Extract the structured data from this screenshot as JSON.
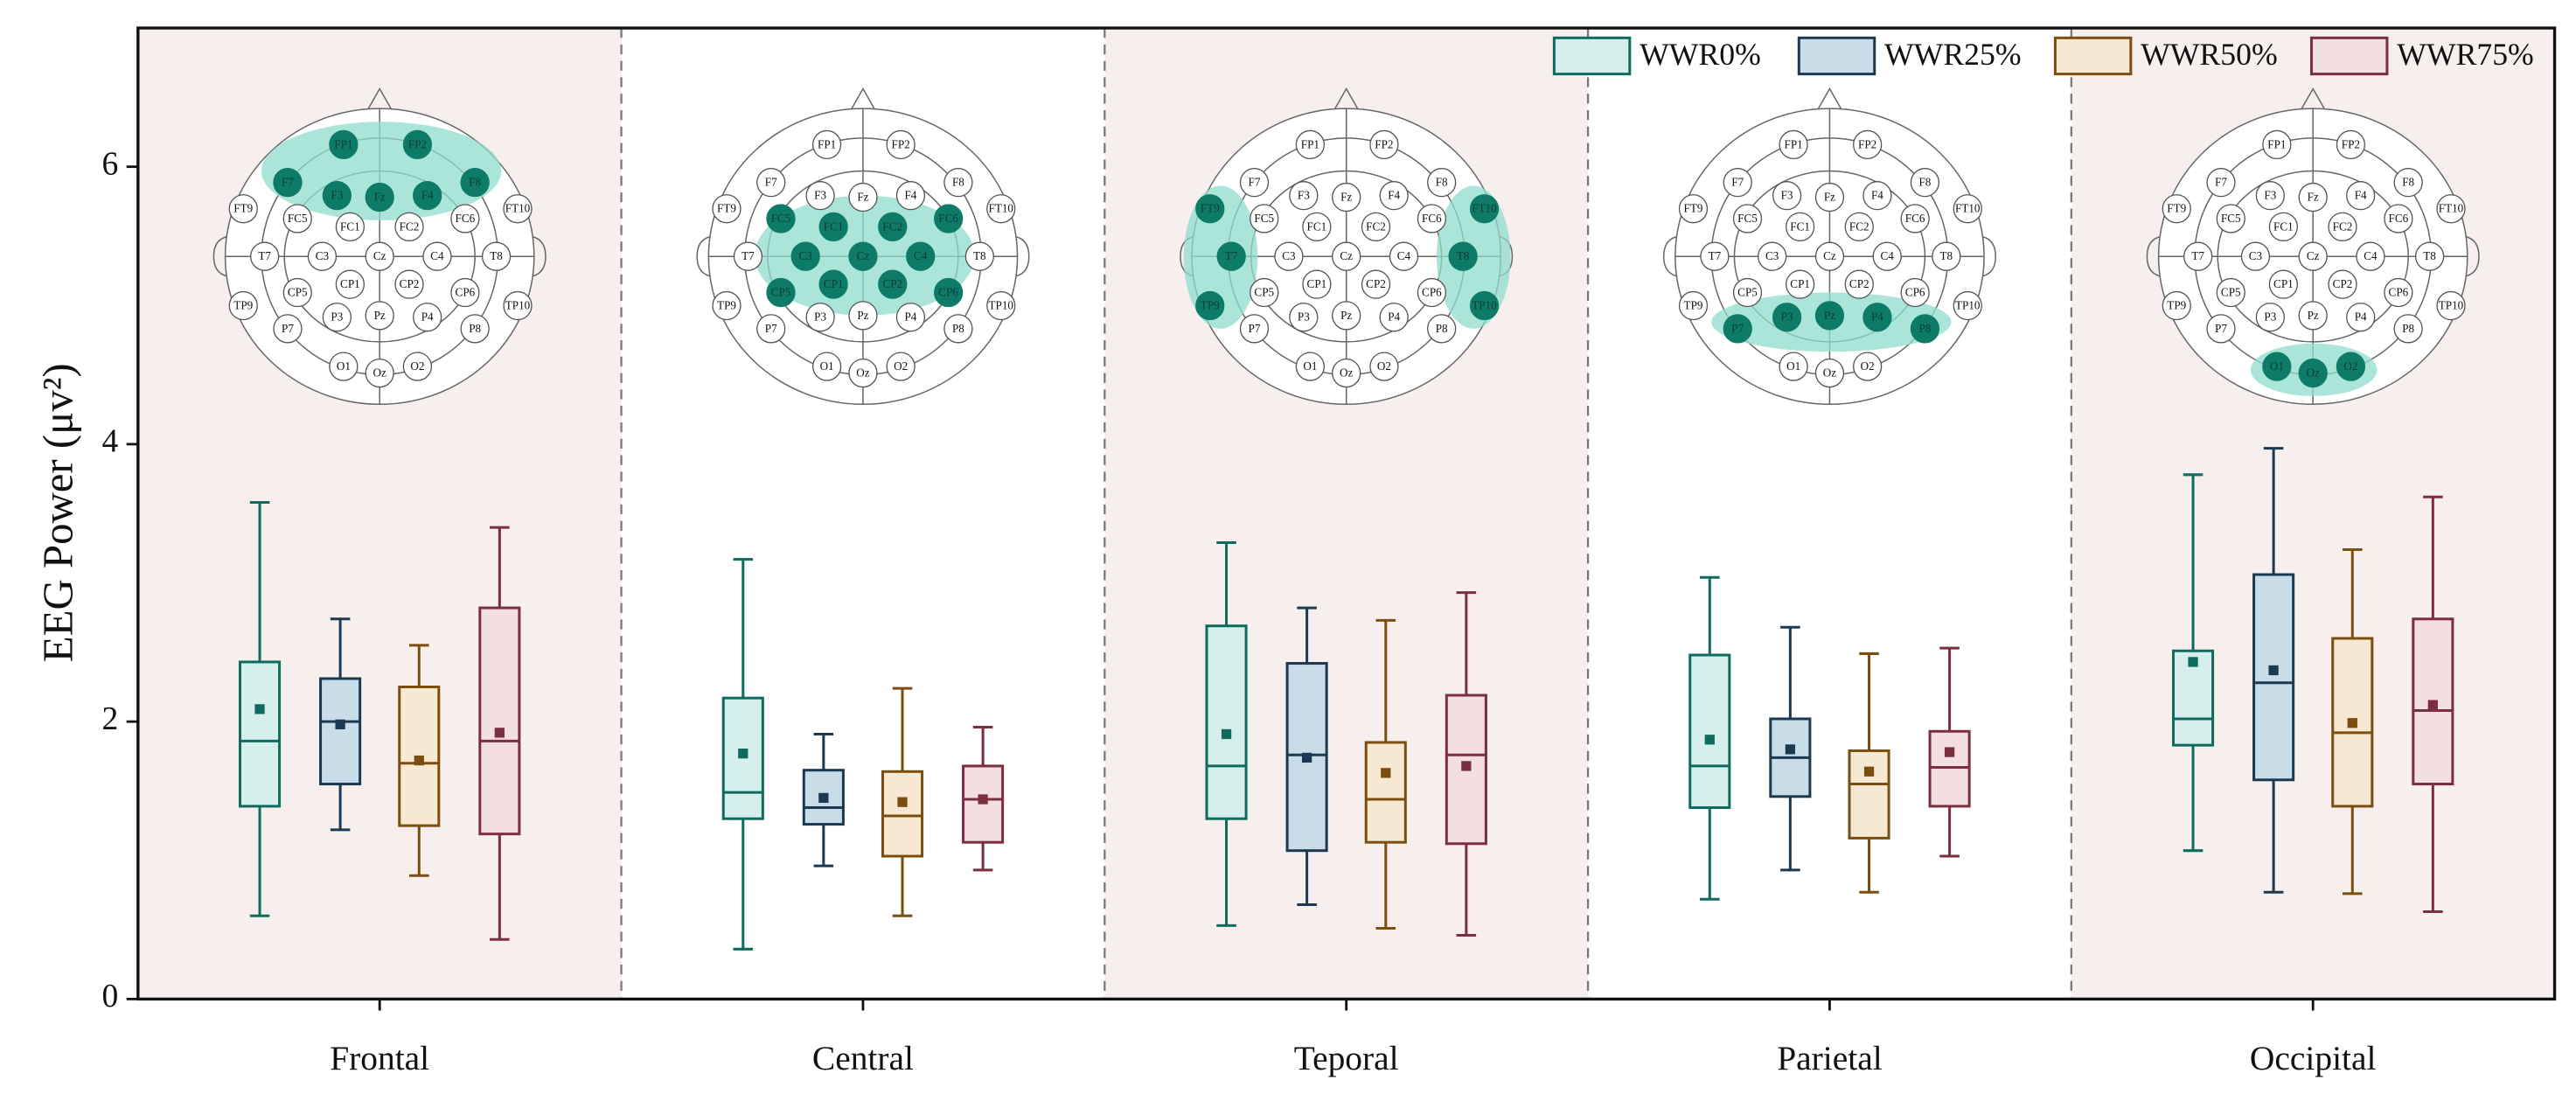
{
  "chart_data": {
    "type": "box",
    "y_label": "EEG Power (μv²)",
    "categories": [
      "Frontal",
      "Central",
      "Teporal",
      "Parietal",
      "Occipital"
    ],
    "ylim": [
      0,
      7
    ],
    "yticks": [
      0,
      2,
      4,
      6
    ],
    "shaded_background": "#f7efed",
    "series": [
      {
        "name": "WWR0%",
        "color": "#0e6b5e",
        "fill": "#d6efec",
        "low": [
          0.6,
          0.36,
          0.53,
          0.72,
          1.07
        ],
        "q1": [
          1.39,
          1.3,
          1.3,
          1.38,
          1.83
        ],
        "median": [
          1.86,
          1.49,
          1.68,
          1.68,
          2.02
        ],
        "q3": [
          2.43,
          2.17,
          2.69,
          2.48,
          2.51
        ],
        "high": [
          3.58,
          3.17,
          3.29,
          3.04,
          3.78
        ],
        "mean": [
          2.09,
          1.77,
          1.91,
          1.87,
          2.43
        ]
      },
      {
        "name": "WWR25%",
        "color": "#1b3a52",
        "fill": "#c9dde9",
        "low": [
          1.22,
          0.96,
          0.68,
          0.93,
          0.77
        ],
        "q1": [
          1.55,
          1.26,
          1.07,
          1.46,
          1.58
        ],
        "median": [
          2.0,
          1.38,
          1.76,
          1.74,
          2.28
        ],
        "q3": [
          2.31,
          1.65,
          2.42,
          2.02,
          3.06
        ],
        "high": [
          2.74,
          1.91,
          2.82,
          2.68,
          3.97
        ],
        "mean": [
          1.98,
          1.45,
          1.74,
          1.8,
          2.37
        ]
      },
      {
        "name": "WWR50%",
        "color": "#7a4e0e",
        "fill": "#f6e8d3",
        "low": [
          0.89,
          0.6,
          0.51,
          0.77,
          0.76
        ],
        "q1": [
          1.25,
          1.03,
          1.13,
          1.16,
          1.39
        ],
        "median": [
          1.7,
          1.32,
          1.44,
          1.55,
          1.92
        ],
        "q3": [
          2.25,
          1.64,
          1.85,
          1.79,
          2.6
        ],
        "high": [
          2.55,
          2.24,
          2.73,
          2.49,
          3.24
        ],
        "mean": [
          1.72,
          1.42,
          1.63,
          1.64,
          1.99
        ]
      },
      {
        "name": "WWR75%",
        "color": "#7a2e3e",
        "fill": "#f3dfe2",
        "low": [
          0.43,
          0.93,
          0.46,
          1.03,
          0.63
        ],
        "q1": [
          1.19,
          1.13,
          1.12,
          1.39,
          1.55
        ],
        "median": [
          1.86,
          1.44,
          1.76,
          1.67,
          2.08
        ],
        "q3": [
          2.82,
          1.68,
          2.19,
          1.93,
          2.74
        ],
        "high": [
          3.4,
          1.96,
          2.93,
          2.53,
          3.62
        ],
        "mean": [
          1.92,
          1.44,
          1.68,
          1.78,
          2.12
        ]
      }
    ],
    "montage": [
      "FP1",
      "FP2",
      "F7",
      "F3",
      "Fz",
      "F4",
      "F8",
      "FT9",
      "FC5",
      "FC1",
      "FC2",
      "FC6",
      "FT10",
      "T7",
      "C3",
      "Cz",
      "C4",
      "T8",
      "TP9",
      "CP5",
      "CP1",
      "CP2",
      "CP6",
      "TP10",
      "P7",
      "P3",
      "Pz",
      "P4",
      "P8",
      "O1",
      "Oz",
      "O2"
    ],
    "regions": [
      [
        "FP1",
        "FP2",
        "F7",
        "F3",
        "Fz",
        "F4",
        "F8"
      ],
      [
        "FC5",
        "FC1",
        "FC2",
        "FC6",
        "C3",
        "Cz",
        "C4",
        "CP5",
        "CP1",
        "CP2",
        "CP6"
      ],
      [
        "FT9",
        "T7",
        "TP9",
        "FT10",
        "T8",
        "TP10"
      ],
      [
        "P7",
        "P3",
        "Pz",
        "P4",
        "P8"
      ],
      [
        "O1",
        "Oz",
        "O2"
      ]
    ],
    "highlight_color": "#0e7a68",
    "highlight_fill": "#8fdccd"
  }
}
